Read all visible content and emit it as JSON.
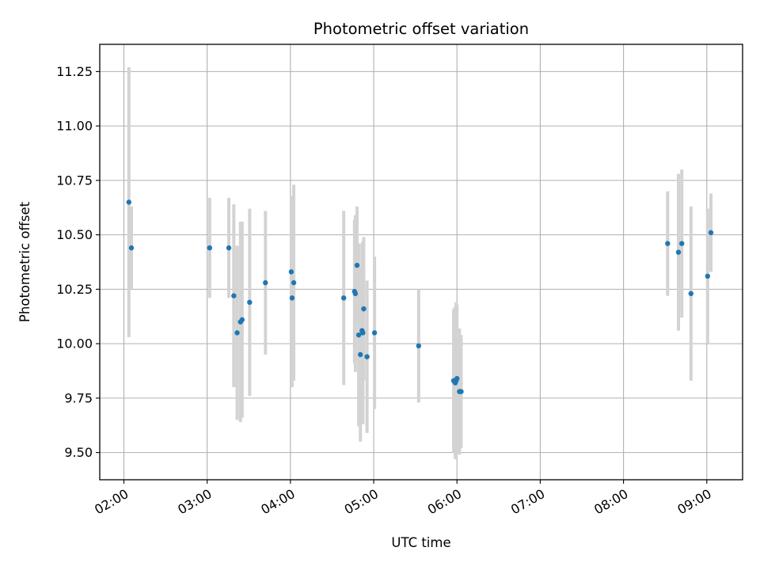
{
  "chart_data": {
    "type": "scatter",
    "title": "Photometric offset variation",
    "xlabel": "UTC time",
    "ylabel": "Photometric offset",
    "x_unit": "UTC time (hours of day)",
    "xlim": [
      1.71,
      9.43
    ],
    "ylim": [
      9.375,
      11.375
    ],
    "xticks": [
      2,
      3,
      4,
      5,
      6,
      7,
      8,
      9
    ],
    "xtick_labels": [
      "02:00",
      "03:00",
      "04:00",
      "05:00",
      "06:00",
      "07:00",
      "08:00",
      "09:00"
    ],
    "yticks": [
      9.5,
      9.75,
      10.0,
      10.25,
      10.5,
      10.75,
      11.0,
      11.25
    ],
    "ytick_labels": [
      "9.50",
      "9.75",
      "10.00",
      "10.25",
      "10.50",
      "10.75",
      "11.00",
      "11.25"
    ],
    "grid": true,
    "marker_color": "#1f77b4",
    "errorbar_color": "#d3d3d3",
    "points": [
      {
        "x": 2.06,
        "y": 10.65,
        "err": 0.62
      },
      {
        "x": 2.09,
        "y": 10.44,
        "err": 0.19
      },
      {
        "x": 3.03,
        "y": 10.44,
        "err": 0.23
      },
      {
        "x": 3.26,
        "y": 10.44,
        "err": 0.23
      },
      {
        "x": 3.32,
        "y": 10.22,
        "err": 0.42
      },
      {
        "x": 3.36,
        "y": 10.05,
        "err": 0.4
      },
      {
        "x": 3.4,
        "y": 10.1,
        "err": 0.46
      },
      {
        "x": 3.42,
        "y": 10.11,
        "err": 0.45
      },
      {
        "x": 3.51,
        "y": 10.19,
        "err": 0.43
      },
      {
        "x": 3.7,
        "y": 10.28,
        "err": 0.33
      },
      {
        "x": 4.01,
        "y": 10.33,
        "err": 0.35
      },
      {
        "x": 4.02,
        "y": 10.21,
        "err": 0.41
      },
      {
        "x": 4.04,
        "y": 10.28,
        "err": 0.45
      },
      {
        "x": 4.64,
        "y": 10.21,
        "err": 0.4
      },
      {
        "x": 4.77,
        "y": 10.24,
        "err": 0.33
      },
      {
        "x": 4.78,
        "y": 10.23,
        "err": 0.36
      },
      {
        "x": 4.8,
        "y": 10.36,
        "err": 0.27
      },
      {
        "x": 4.82,
        "y": 10.04,
        "err": 0.42
      },
      {
        "x": 4.84,
        "y": 9.95,
        "err": 0.4
      },
      {
        "x": 4.86,
        "y": 10.06,
        "err": 0.4
      },
      {
        "x": 4.87,
        "y": 10.05,
        "err": 0.42
      },
      {
        "x": 4.88,
        "y": 10.16,
        "err": 0.33
      },
      {
        "x": 4.92,
        "y": 9.94,
        "err": 0.35
      },
      {
        "x": 5.01,
        "y": 10.05,
        "err": 0.35
      },
      {
        "x": 5.54,
        "y": 9.99,
        "err": 0.26
      },
      {
        "x": 5.96,
        "y": 9.83,
        "err": 0.33
      },
      {
        "x": 5.98,
        "y": 9.82,
        "err": 0.35
      },
      {
        "x": 5.99,
        "y": 9.83,
        "err": 0.36
      },
      {
        "x": 6.0,
        "y": 9.84,
        "err": 0.34
      },
      {
        "x": 6.03,
        "y": 9.78,
        "err": 0.29
      },
      {
        "x": 6.05,
        "y": 9.78,
        "err": 0.26
      },
      {
        "x": 8.53,
        "y": 10.46,
        "err": 0.24
      },
      {
        "x": 8.66,
        "y": 10.42,
        "err": 0.36
      },
      {
        "x": 8.7,
        "y": 10.46,
        "err": 0.34
      },
      {
        "x": 8.81,
        "y": 10.23,
        "err": 0.4
      },
      {
        "x": 9.01,
        "y": 10.31,
        "err": 0.31
      },
      {
        "x": 9.05,
        "y": 10.51,
        "err": 0.18
      }
    ]
  }
}
